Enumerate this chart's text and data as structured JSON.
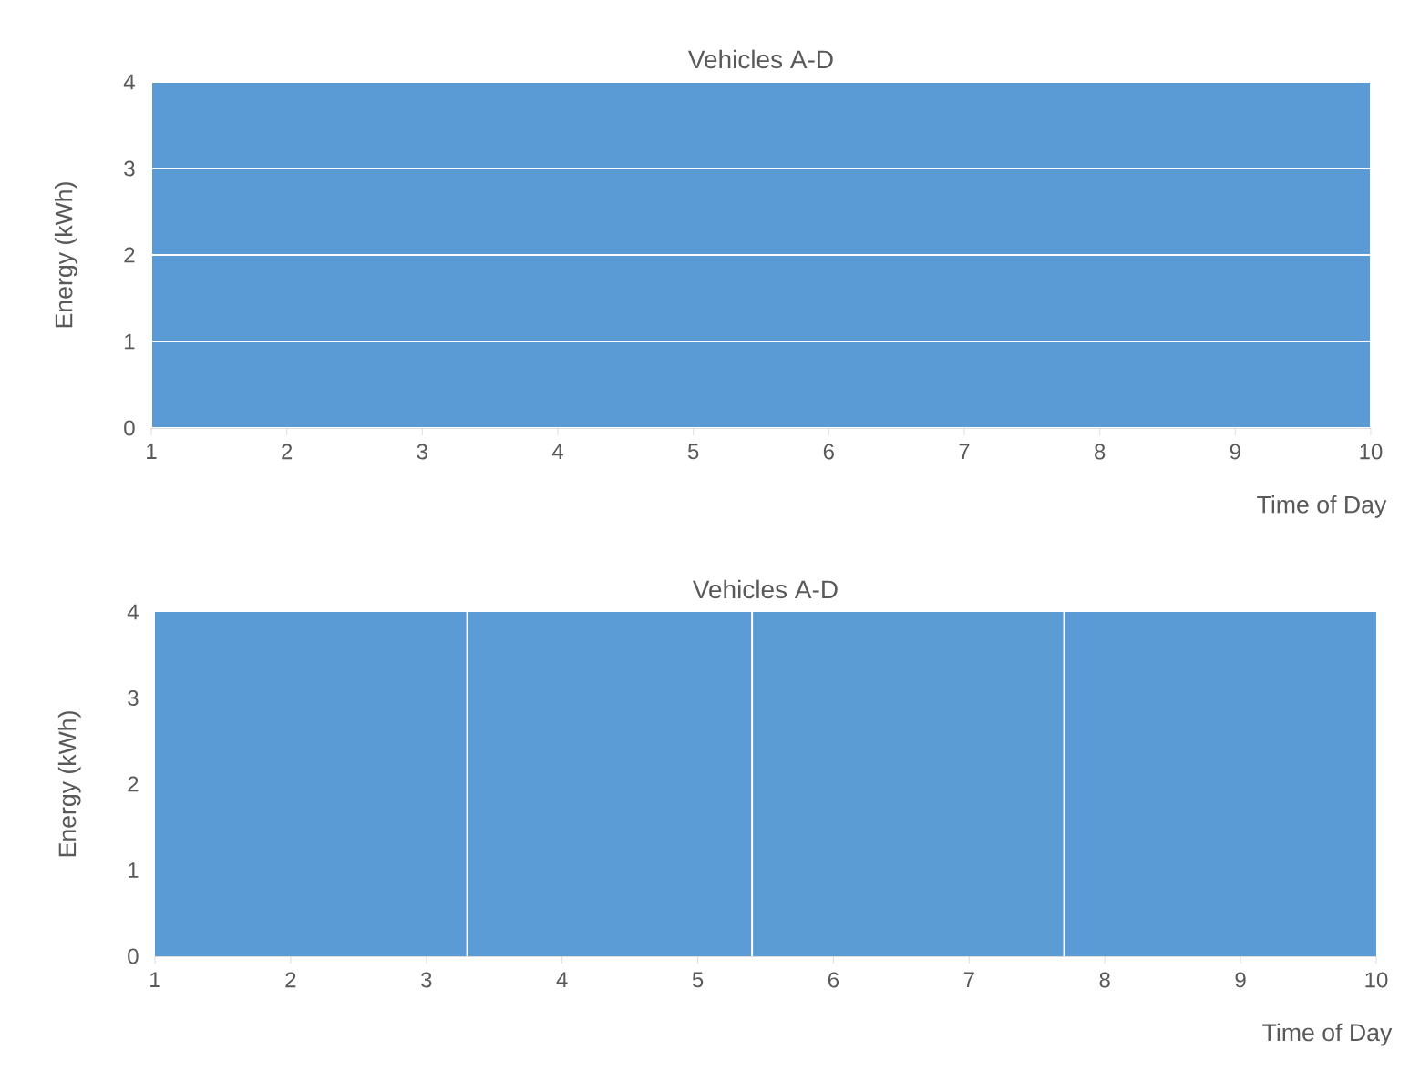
{
  "chart_data": [
    {
      "type": "area",
      "title": "Vehicles A-D",
      "xlabel": "Time of Day",
      "ylabel": "Energy (kWh)",
      "stacked": true,
      "x": [
        1,
        10
      ],
      "xlim": [
        1,
        10
      ],
      "ylim": [
        0,
        4
      ],
      "xticks": [
        1,
        2,
        3,
        4,
        5,
        6,
        7,
        8,
        9,
        10
      ],
      "yticks": [
        0,
        1,
        2,
        3,
        4
      ],
      "legend": false,
      "series": [
        {
          "color": "#5b9bd5",
          "values": [
            1,
            1
          ]
        },
        {
          "color": "#5b9bd5",
          "values": [
            1,
            1
          ]
        },
        {
          "color": "#5b9bd5",
          "values": [
            1,
            1
          ]
        },
        {
          "color": "#5b9bd5",
          "values": [
            1,
            1
          ]
        }
      ]
    },
    {
      "type": "area",
      "title": "Vehicles A-D",
      "xlabel": "Time of Day",
      "ylabel": "Energy (kWh)",
      "xlim": [
        1,
        10
      ],
      "ylim": [
        0,
        4
      ],
      "xticks": [
        1,
        2,
        3,
        4,
        5,
        6,
        7,
        8,
        9,
        10
      ],
      "yticks": [
        0,
        1,
        2,
        3,
        4
      ],
      "legend": false,
      "series": [
        {
          "color": "#5b9bd5",
          "x": [
            1,
            3.3
          ],
          "values": [
            4,
            4
          ]
        },
        {
          "color": "#5b9bd6",
          "x": [
            3.3,
            5.4
          ],
          "values": [
            4,
            4
          ]
        },
        {
          "color": "#5b9cd5",
          "x": [
            5.4,
            7.7
          ],
          "values": [
            4,
            4
          ]
        },
        {
          "color": "#5a9bd5",
          "x": [
            7.7,
            10
          ],
          "values": [
            4,
            4
          ]
        }
      ]
    }
  ]
}
